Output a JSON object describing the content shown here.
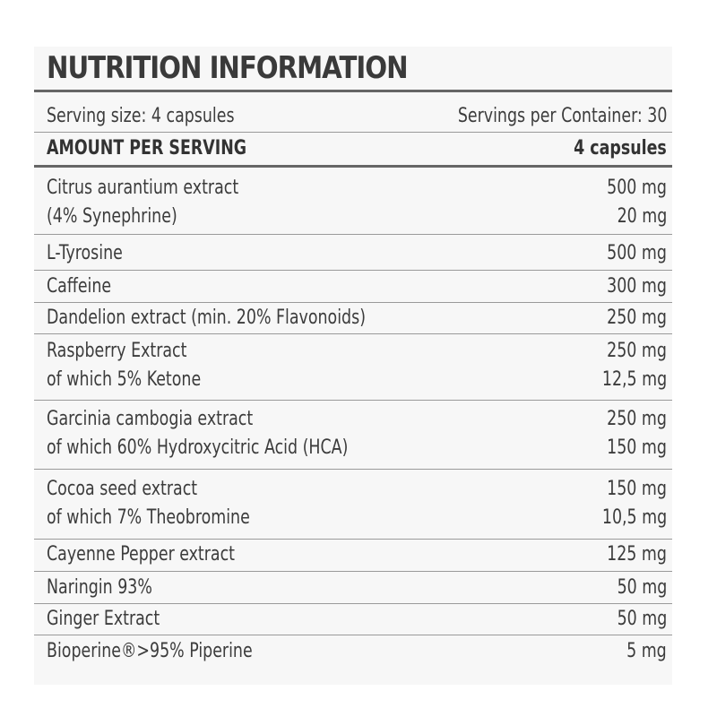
{
  "title": "NUTRITION INFORMATION",
  "serving_size": "Serving size: 4 capsules",
  "servings_per_container": "Servings per Container: 30",
  "amount_per_serving_label": "AMOUNT PER SERVING",
  "amount_per_serving_value": "4 capsules",
  "rows": [
    {
      "label": "Citrus aurantium extract",
      "value": "500 mg",
      "sub_label": "(4% Synephrine)",
      "sub_value": "20 mg"
    },
    {
      "label": "L-Tyrosine",
      "value": "500 mg"
    },
    {
      "label": "Caffeine",
      "value": "300 mg"
    },
    {
      "label": "Dandelion extract (min. 20% Flavonoids)",
      "value": "250 mg"
    },
    {
      "label": "Raspberry Extract",
      "value": "250 mg",
      "sub_label": "of which 5% Ketone",
      "sub_value": "12,5 mg"
    },
    {
      "label": "Garcinia cambogia extract",
      "value": "250 mg",
      "sub_label": "of which 60% Hydroxycitric Acid (HCA)",
      "sub_value": "150 mg"
    },
    {
      "label": "Cocoa seed extract",
      "value": "150 mg",
      "sub_label": "of which 7% Theobromine",
      "sub_value": "10,5 mg"
    },
    {
      "label": "Cayenne Pepper extract",
      "value": "125 mg"
    },
    {
      "label": "Naringin 93%",
      "value": "50 mg"
    },
    {
      "label": "Ginger Extract",
      "value": "50 mg"
    },
    {
      "label": "Bioperine®>95% Piperine",
      "value": "5 mg"
    }
  ]
}
